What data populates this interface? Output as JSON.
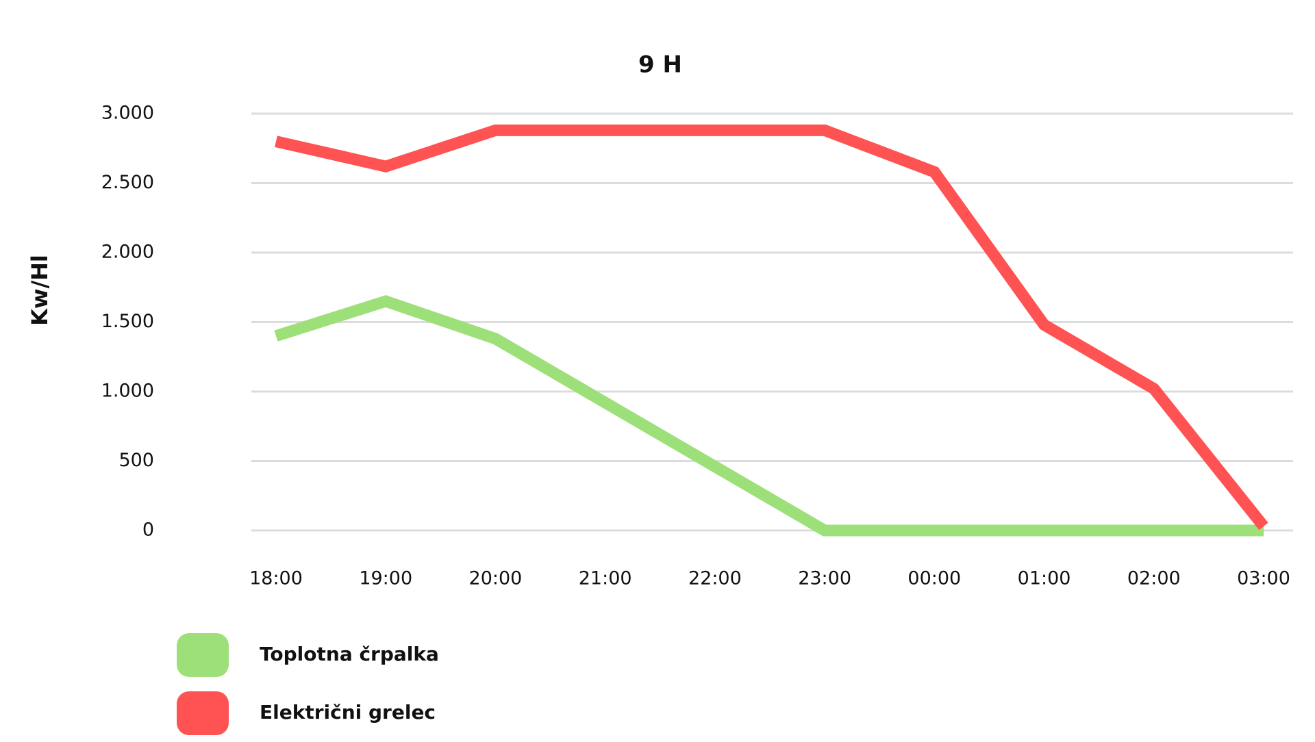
{
  "chart_data": {
    "type": "line",
    "title": "9 H",
    "y_label": "Kw/Hl",
    "categories": [
      "18:00",
      "19:00",
      "20:00",
      "21:00",
      "22:00",
      "23:00",
      "00:00",
      "01:00",
      "02:00",
      "03:00"
    ],
    "series": [
      {
        "name": "Toplotna črpalka",
        "color": "#9de07a",
        "values": [
          1400,
          1650,
          1380,
          920,
          460,
          0,
          0,
          0,
          0,
          0
        ]
      },
      {
        "name": "Električni grelec",
        "color": "#ff5252",
        "values": [
          2800,
          2620,
          2880,
          2880,
          2880,
          2880,
          2580,
          1480,
          1020,
          30
        ]
      }
    ],
    "ylim": [
      0,
      3000
    ],
    "yticks": [
      0,
      500,
      {
        "value": 1000,
        "label": "1.000"
      },
      {
        "value": 1500,
        "label": "1.500"
      },
      {
        "value": 2000,
        "label": "2.000"
      },
      {
        "value": 2500,
        "label": "2.500"
      },
      {
        "value": 3000,
        "label": "3.000"
      }
    ],
    "grid": true
  }
}
